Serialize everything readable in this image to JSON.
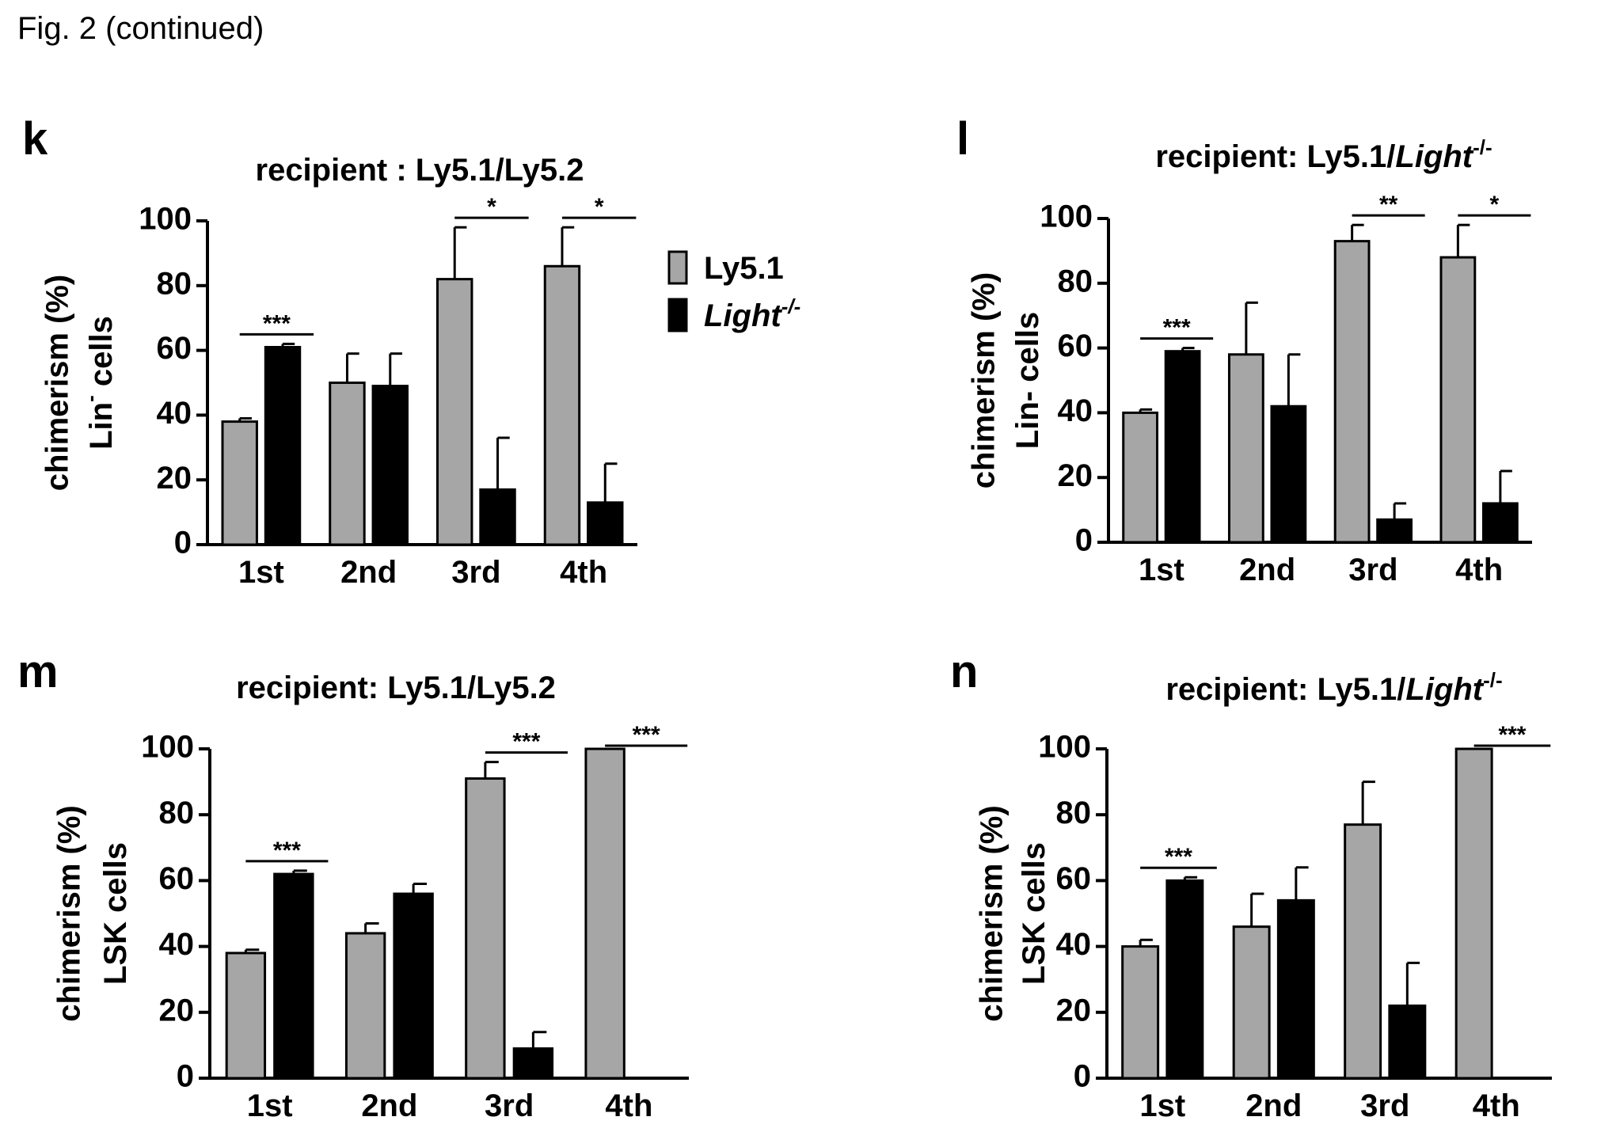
{
  "figure_caption": "Fig. 2 (continued)",
  "colors": {
    "ly51": "#a6a6a6",
    "light": "#000000",
    "axis": "#000000"
  },
  "legend": {
    "items": [
      {
        "label": "Ly5.1",
        "color": "#a6a6a6"
      },
      {
        "label_plain": "Light",
        "label_sup": "-/-",
        "color": "#000000",
        "italic": true
      }
    ]
  },
  "chart_data": [
    {
      "panel": "k",
      "type": "bar",
      "title": "recipient : Ly5.1/Ly5.2",
      "title_italic": "",
      "title_sup": "",
      "ylabel_line1": "chimerism (%)",
      "ylabel_line2": "Lin",
      "ylabel_sup": "-",
      "ylabel_line2_rest": " cells",
      "ylim": [
        0,
        100
      ],
      "yticks": [
        "0",
        "20",
        "40",
        "60",
        "80",
        "100"
      ],
      "categories": [
        "1st",
        "2nd",
        "3rd",
        "4th"
      ],
      "series": [
        {
          "name": "Ly5.1",
          "values": [
            38,
            50,
            82,
            86
          ],
          "errors": [
            1,
            9,
            16,
            12
          ]
        },
        {
          "name": "Light-/-",
          "values": [
            61,
            49,
            17,
            13
          ],
          "errors": [
            1,
            10,
            16,
            12
          ]
        }
      ],
      "significance": [
        {
          "category": 0,
          "label": "***"
        },
        {
          "category": 2,
          "label": "*"
        },
        {
          "category": 3,
          "label": "*"
        }
      ]
    },
    {
      "panel": "l",
      "type": "bar",
      "title": "recipient: Ly5.1/",
      "title_italic": "Light",
      "title_sup": "-/-",
      "ylabel_line1": "chimerism (%)",
      "ylabel_line2": "Lin- cells",
      "ylabel_sup": "",
      "ylabel_line2_rest": "",
      "ylim": [
        0,
        100
      ],
      "yticks": [
        "0",
        "20",
        "40",
        "60",
        "80",
        "100"
      ],
      "categories": [
        "1st",
        "2nd",
        "3rd",
        "4th"
      ],
      "series": [
        {
          "name": "Ly5.1",
          "values": [
            40,
            58,
            93,
            88
          ],
          "errors": [
            1,
            16,
            5,
            10
          ]
        },
        {
          "name": "Light-/-",
          "values": [
            59,
            42,
            7,
            12
          ],
          "errors": [
            1,
            16,
            5,
            10
          ]
        }
      ],
      "significance": [
        {
          "category": 0,
          "label": "***"
        },
        {
          "category": 2,
          "label": "**"
        },
        {
          "category": 3,
          "label": "*"
        }
      ]
    },
    {
      "panel": "m",
      "type": "bar",
      "title": "recipient: Ly5.1/Ly5.2",
      "title_italic": "",
      "title_sup": "",
      "ylabel_line1": "chimerism (%)",
      "ylabel_line2": "LSK cells",
      "ylabel_sup": "",
      "ylabel_line2_rest": "",
      "ylim": [
        0,
        100
      ],
      "yticks": [
        "0",
        "20",
        "40",
        "60",
        "80",
        "100"
      ],
      "categories": [
        "1st",
        "2nd",
        "3rd",
        "4th"
      ],
      "series": [
        {
          "name": "Ly5.1",
          "values": [
            38,
            44,
            91,
            100
          ],
          "errors": [
            1,
            3,
            5,
            0
          ]
        },
        {
          "name": "Light-/-",
          "values": [
            62,
            56,
            9,
            0
          ],
          "errors": [
            1,
            3,
            5,
            0
          ]
        }
      ],
      "significance": [
        {
          "category": 0,
          "label": "***"
        },
        {
          "category": 2,
          "label": "***"
        },
        {
          "category": 3,
          "label": "***"
        }
      ]
    },
    {
      "panel": "n",
      "type": "bar",
      "title": "recipient: Ly5.1/",
      "title_italic": "Light",
      "title_sup": "-/-",
      "ylabel_line1": "chimerism (%)",
      "ylabel_line2": "LSK cells",
      "ylabel_sup": "",
      "ylabel_line2_rest": "",
      "ylim": [
        0,
        100
      ],
      "yticks": [
        "0",
        "20",
        "40",
        "60",
        "80",
        "100"
      ],
      "categories": [
        "1st",
        "2nd",
        "3rd",
        "4th"
      ],
      "series": [
        {
          "name": "Ly5.1",
          "values": [
            40,
            46,
            77,
            100
          ],
          "errors": [
            2,
            10,
            13,
            0
          ]
        },
        {
          "name": "Light-/-",
          "values": [
            60,
            54,
            22,
            0
          ],
          "errors": [
            1,
            10,
            13,
            0
          ]
        }
      ],
      "significance": [
        {
          "category": 0,
          "label": "***"
        },
        {
          "category": 3,
          "label": "***"
        }
      ]
    }
  ]
}
